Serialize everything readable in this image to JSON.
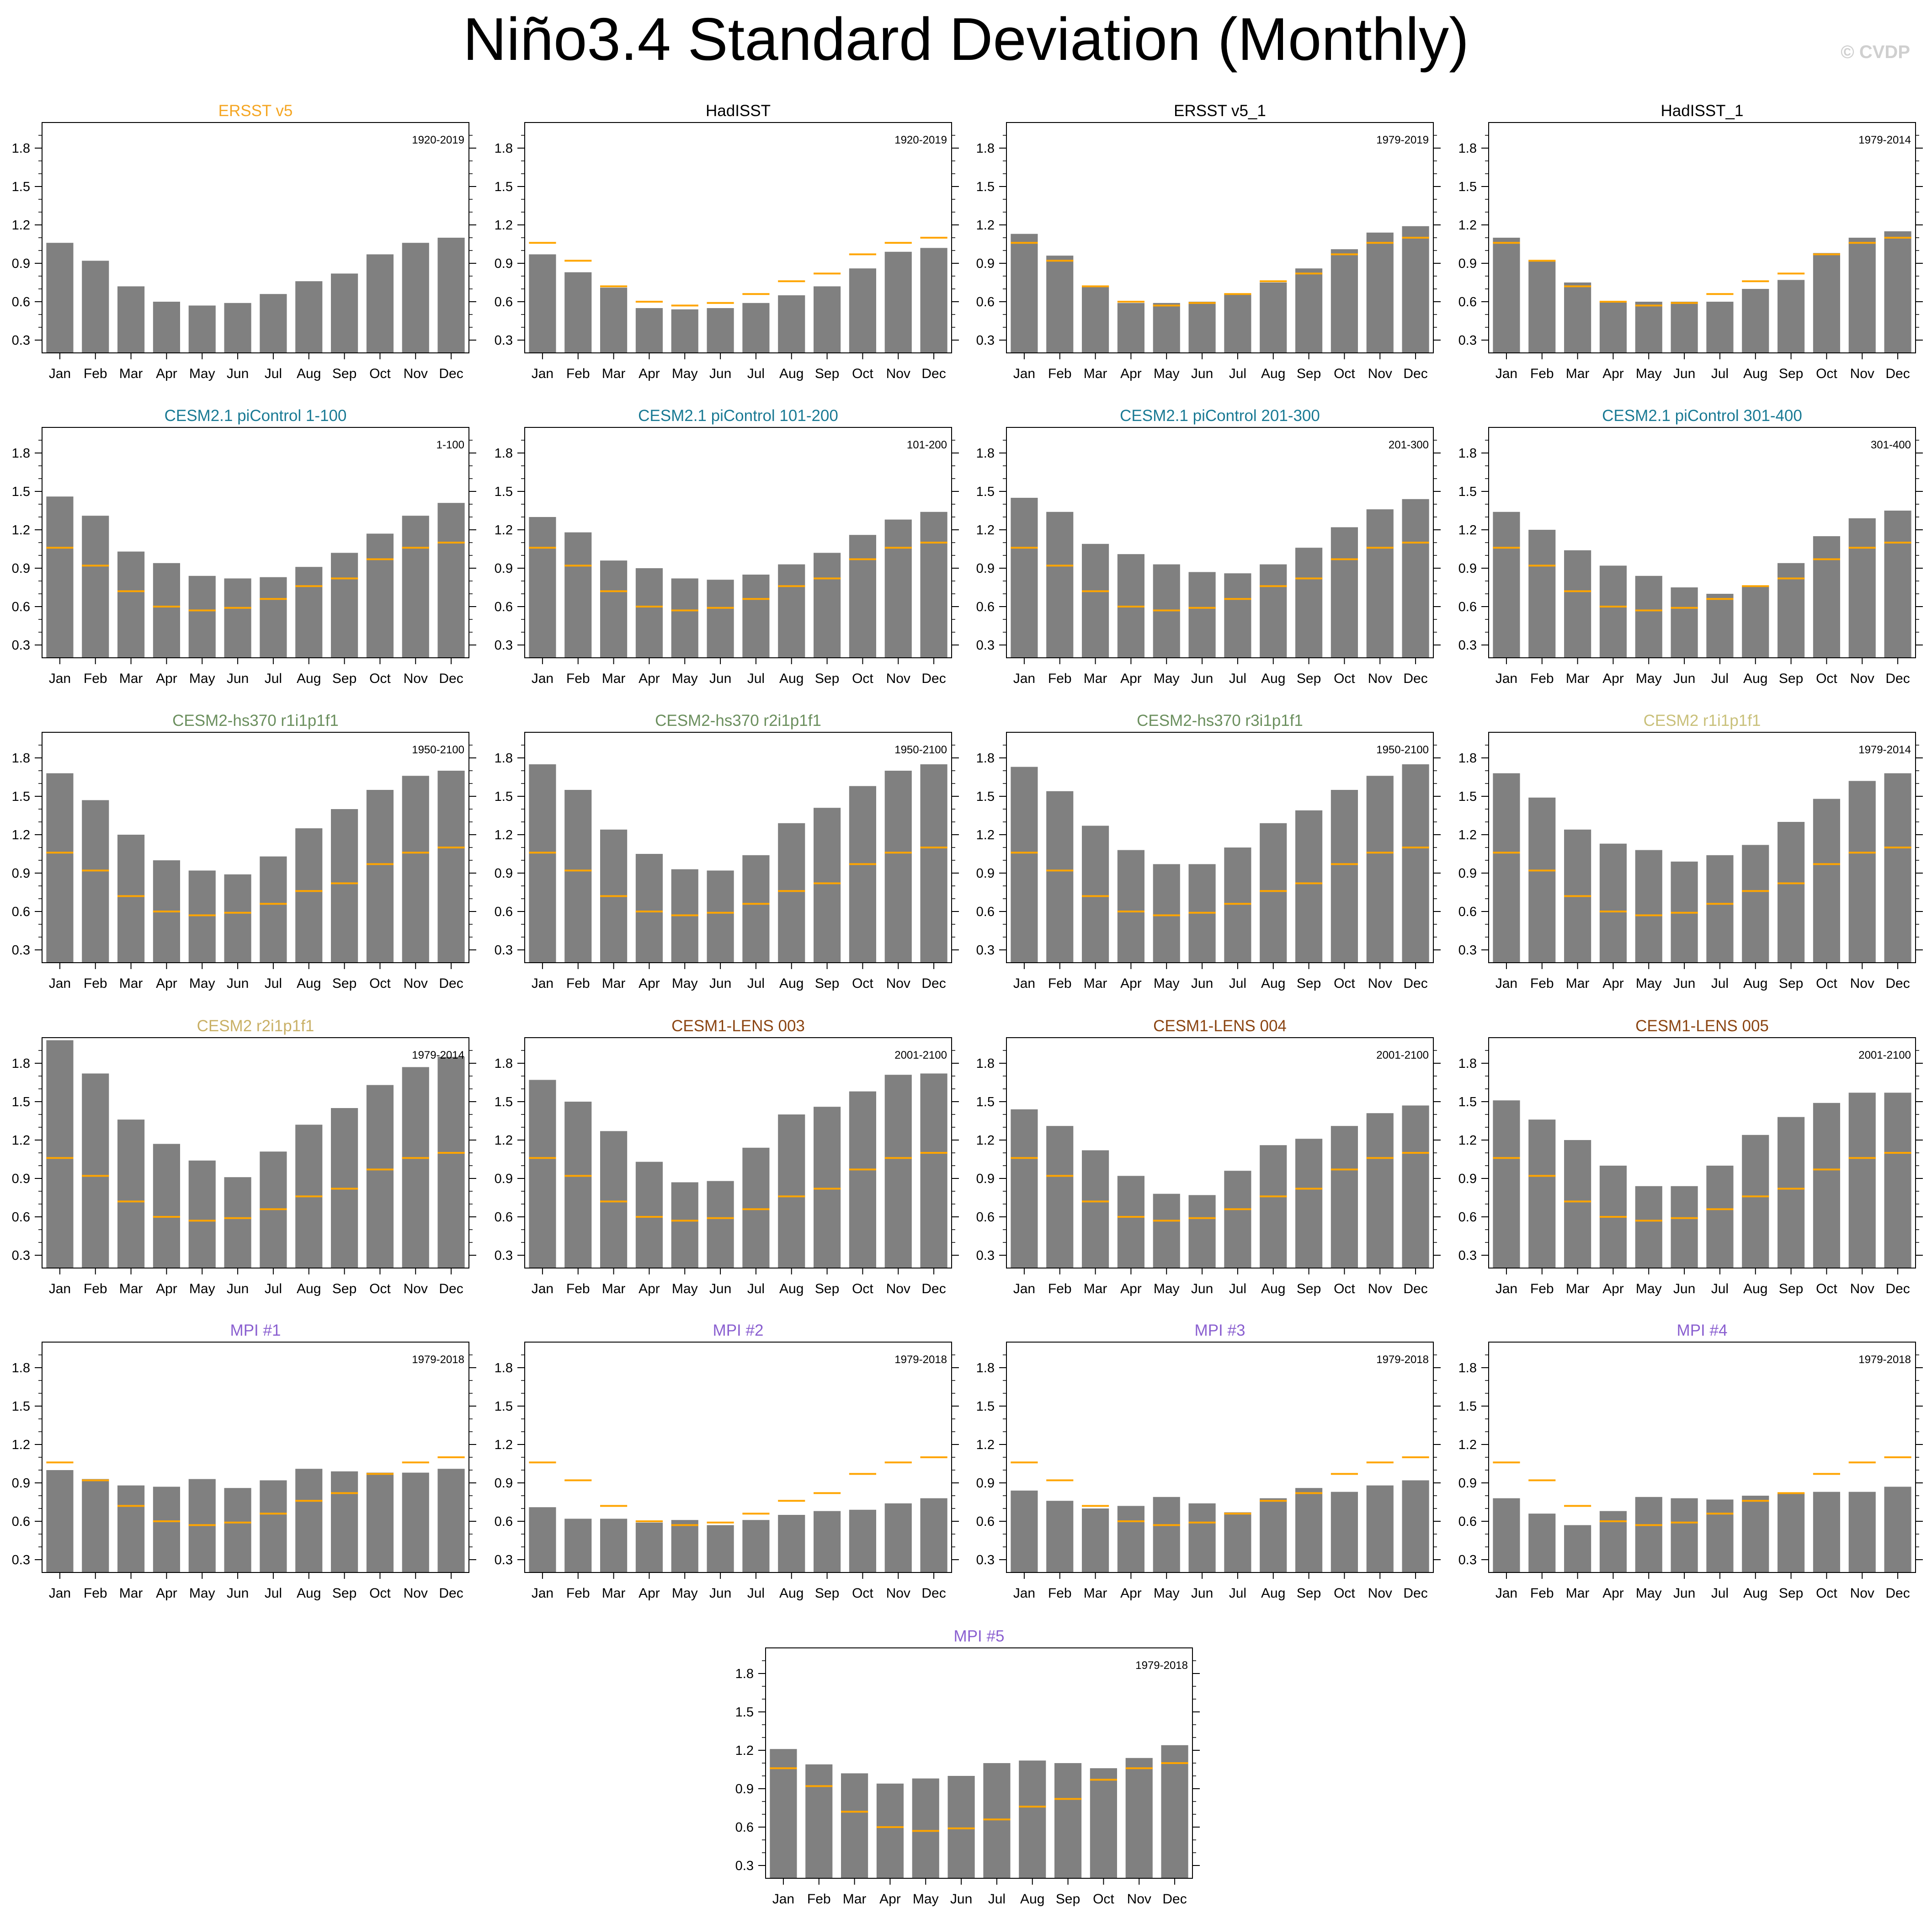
{
  "page": {
    "title": "Niño3.4 Standard Deviation (Monthly)",
    "watermark": "© CVDP",
    "colors": {
      "bar": "#808080",
      "reference_line": "#ffa500",
      "axis": "#000000"
    }
  },
  "chart_data": [
    {
      "type": "bar",
      "title": "ERSST v5",
      "title_color": "#f5a623",
      "period": "1920-2019",
      "categories": [
        "Jan",
        "Feb",
        "Mar",
        "Apr",
        "May",
        "Jun",
        "Jul",
        "Aug",
        "Sep",
        "Oct",
        "Nov",
        "Dec"
      ],
      "values": [
        1.06,
        0.92,
        0.72,
        0.6,
        0.57,
        0.59,
        0.66,
        0.76,
        0.82,
        0.97,
        1.06,
        1.1
      ],
      "reference": [
        1.06,
        0.92,
        0.72,
        0.6,
        0.57,
        0.59,
        0.66,
        0.76,
        0.82,
        0.97,
        1.06,
        1.1
      ],
      "show_reference": false,
      "ylim": [
        0.2,
        2.0
      ],
      "yticks": [
        0.3,
        0.6,
        0.9,
        1.2,
        1.5,
        1.8
      ]
    },
    {
      "type": "bar",
      "title": "HadISST",
      "title_color": "#000000",
      "period": "1920-2019",
      "categories": [
        "Jan",
        "Feb",
        "Mar",
        "Apr",
        "May",
        "Jun",
        "Jul",
        "Aug",
        "Sep",
        "Oct",
        "Nov",
        "Dec"
      ],
      "values": [
        0.97,
        0.83,
        0.71,
        0.55,
        0.54,
        0.55,
        0.59,
        0.65,
        0.72,
        0.86,
        0.99,
        1.02
      ],
      "reference": [
        1.06,
        0.92,
        0.72,
        0.6,
        0.57,
        0.59,
        0.66,
        0.76,
        0.82,
        0.97,
        1.06,
        1.1
      ],
      "show_reference": true,
      "ylim": [
        0.2,
        2.0
      ],
      "yticks": [
        0.3,
        0.6,
        0.9,
        1.2,
        1.5,
        1.8
      ]
    },
    {
      "type": "bar",
      "title": "ERSST v5_1",
      "title_color": "#000000",
      "period": "1979-2019",
      "categories": [
        "Jan",
        "Feb",
        "Mar",
        "Apr",
        "May",
        "Jun",
        "Jul",
        "Aug",
        "Sep",
        "Oct",
        "Nov",
        "Dec"
      ],
      "values": [
        1.13,
        0.96,
        0.72,
        0.59,
        0.59,
        0.6,
        0.66,
        0.75,
        0.86,
        1.01,
        1.14,
        1.19
      ],
      "reference": [
        1.06,
        0.92,
        0.72,
        0.6,
        0.57,
        0.59,
        0.66,
        0.76,
        0.82,
        0.97,
        1.06,
        1.1
      ],
      "show_reference": true,
      "ylim": [
        0.2,
        2.0
      ],
      "yticks": [
        0.3,
        0.6,
        0.9,
        1.2,
        1.5,
        1.8
      ]
    },
    {
      "type": "bar",
      "title": "HadISST_1",
      "title_color": "#000000",
      "period": "1979-2014",
      "categories": [
        "Jan",
        "Feb",
        "Mar",
        "Apr",
        "May",
        "Jun",
        "Jul",
        "Aug",
        "Sep",
        "Oct",
        "Nov",
        "Dec"
      ],
      "values": [
        1.1,
        0.92,
        0.75,
        0.6,
        0.6,
        0.6,
        0.6,
        0.7,
        0.77,
        0.98,
        1.1,
        1.15
      ],
      "reference": [
        1.06,
        0.92,
        0.72,
        0.6,
        0.57,
        0.59,
        0.66,
        0.76,
        0.82,
        0.97,
        1.06,
        1.1
      ],
      "show_reference": true,
      "ylim": [
        0.2,
        2.0
      ],
      "yticks": [
        0.3,
        0.6,
        0.9,
        1.2,
        1.5,
        1.8
      ]
    },
    {
      "type": "bar",
      "title": "CESM2.1 piControl 1-100",
      "title_color": "#1a7a94",
      "period": "1-100",
      "categories": [
        "Jan",
        "Feb",
        "Mar",
        "Apr",
        "May",
        "Jun",
        "Jul",
        "Aug",
        "Sep",
        "Oct",
        "Nov",
        "Dec"
      ],
      "values": [
        1.46,
        1.31,
        1.03,
        0.94,
        0.84,
        0.82,
        0.83,
        0.91,
        1.02,
        1.17,
        1.31,
        1.41
      ],
      "reference": [
        1.06,
        0.92,
        0.72,
        0.6,
        0.57,
        0.59,
        0.66,
        0.76,
        0.82,
        0.97,
        1.06,
        1.1
      ],
      "show_reference": true,
      "ylim": [
        0.2,
        2.0
      ],
      "yticks": [
        0.3,
        0.6,
        0.9,
        1.2,
        1.5,
        1.8
      ]
    },
    {
      "type": "bar",
      "title": "CESM2.1 piControl 101-200",
      "title_color": "#1a7a94",
      "period": "101-200",
      "categories": [
        "Jan",
        "Feb",
        "Mar",
        "Apr",
        "May",
        "Jun",
        "Jul",
        "Aug",
        "Sep",
        "Oct",
        "Nov",
        "Dec"
      ],
      "values": [
        1.3,
        1.18,
        0.96,
        0.9,
        0.82,
        0.81,
        0.85,
        0.93,
        1.02,
        1.16,
        1.28,
        1.34
      ],
      "reference": [
        1.06,
        0.92,
        0.72,
        0.6,
        0.57,
        0.59,
        0.66,
        0.76,
        0.82,
        0.97,
        1.06,
        1.1
      ],
      "show_reference": true,
      "ylim": [
        0.2,
        2.0
      ],
      "yticks": [
        0.3,
        0.6,
        0.9,
        1.2,
        1.5,
        1.8
      ]
    },
    {
      "type": "bar",
      "title": "CESM2.1 piControl 201-300",
      "title_color": "#1a7a94",
      "period": "201-300",
      "categories": [
        "Jan",
        "Feb",
        "Mar",
        "Apr",
        "May",
        "Jun",
        "Jul",
        "Aug",
        "Sep",
        "Oct",
        "Nov",
        "Dec"
      ],
      "values": [
        1.45,
        1.34,
        1.09,
        1.01,
        0.93,
        0.87,
        0.86,
        0.93,
        1.06,
        1.22,
        1.36,
        1.44
      ],
      "reference": [
        1.06,
        0.92,
        0.72,
        0.6,
        0.57,
        0.59,
        0.66,
        0.76,
        0.82,
        0.97,
        1.06,
        1.1
      ],
      "show_reference": true,
      "ylim": [
        0.2,
        2.0
      ],
      "yticks": [
        0.3,
        0.6,
        0.9,
        1.2,
        1.5,
        1.8
      ]
    },
    {
      "type": "bar",
      "title": "CESM2.1 piControl 301-400",
      "title_color": "#1a7a94",
      "period": "301-400",
      "categories": [
        "Jan",
        "Feb",
        "Mar",
        "Apr",
        "May",
        "Jun",
        "Jul",
        "Aug",
        "Sep",
        "Oct",
        "Nov",
        "Dec"
      ],
      "values": [
        1.34,
        1.2,
        1.04,
        0.92,
        0.84,
        0.75,
        0.7,
        0.76,
        0.94,
        1.15,
        1.29,
        1.35
      ],
      "reference": [
        1.06,
        0.92,
        0.72,
        0.6,
        0.57,
        0.59,
        0.66,
        0.76,
        0.82,
        0.97,
        1.06,
        1.1
      ],
      "show_reference": true,
      "ylim": [
        0.2,
        2.0
      ],
      "yticks": [
        0.3,
        0.6,
        0.9,
        1.2,
        1.5,
        1.8
      ]
    },
    {
      "type": "bar",
      "title": "CESM2-hs370 r1i1p1f1",
      "title_color": "#6b8f5e",
      "period": "1950-2100",
      "categories": [
        "Jan",
        "Feb",
        "Mar",
        "Apr",
        "May",
        "Jun",
        "Jul",
        "Aug",
        "Sep",
        "Oct",
        "Nov",
        "Dec"
      ],
      "values": [
        1.68,
        1.47,
        1.2,
        1.0,
        0.92,
        0.89,
        1.03,
        1.25,
        1.4,
        1.55,
        1.66,
        1.7
      ],
      "reference": [
        1.06,
        0.92,
        0.72,
        0.6,
        0.57,
        0.59,
        0.66,
        0.76,
        0.82,
        0.97,
        1.06,
        1.1
      ],
      "show_reference": true,
      "ylim": [
        0.2,
        2.0
      ],
      "yticks": [
        0.3,
        0.6,
        0.9,
        1.2,
        1.5,
        1.8
      ]
    },
    {
      "type": "bar",
      "title": "CESM2-hs370 r2i1p1f1",
      "title_color": "#6b8f5e",
      "period": "1950-2100",
      "categories": [
        "Jan",
        "Feb",
        "Mar",
        "Apr",
        "May",
        "Jun",
        "Jul",
        "Aug",
        "Sep",
        "Oct",
        "Nov",
        "Dec"
      ],
      "values": [
        1.75,
        1.55,
        1.24,
        1.05,
        0.93,
        0.92,
        1.04,
        1.29,
        1.41,
        1.58,
        1.7,
        1.75
      ],
      "reference": [
        1.06,
        0.92,
        0.72,
        0.6,
        0.57,
        0.59,
        0.66,
        0.76,
        0.82,
        0.97,
        1.06,
        1.1
      ],
      "show_reference": true,
      "ylim": [
        0.2,
        2.0
      ],
      "yticks": [
        0.3,
        0.6,
        0.9,
        1.2,
        1.5,
        1.8
      ]
    },
    {
      "type": "bar",
      "title": "CESM2-hs370 r3i1p1f1",
      "title_color": "#6b8f5e",
      "period": "1950-2100",
      "categories": [
        "Jan",
        "Feb",
        "Mar",
        "Apr",
        "May",
        "Jun",
        "Jul",
        "Aug",
        "Sep",
        "Oct",
        "Nov",
        "Dec"
      ],
      "values": [
        1.73,
        1.54,
        1.27,
        1.08,
        0.97,
        0.97,
        1.1,
        1.29,
        1.39,
        1.55,
        1.66,
        1.75
      ],
      "reference": [
        1.06,
        0.92,
        0.72,
        0.6,
        0.57,
        0.59,
        0.66,
        0.76,
        0.82,
        0.97,
        1.06,
        1.1
      ],
      "show_reference": true,
      "ylim": [
        0.2,
        2.0
      ],
      "yticks": [
        0.3,
        0.6,
        0.9,
        1.2,
        1.5,
        1.8
      ]
    },
    {
      "type": "bar",
      "title": "CESM2 r1i1p1f1",
      "title_color": "#c9c07a",
      "period": "1979-2014",
      "categories": [
        "Jan",
        "Feb",
        "Mar",
        "Apr",
        "May",
        "Jun",
        "Jul",
        "Aug",
        "Sep",
        "Oct",
        "Nov",
        "Dec"
      ],
      "values": [
        1.68,
        1.49,
        1.24,
        1.13,
        1.08,
        0.99,
        1.04,
        1.12,
        1.3,
        1.48,
        1.62,
        1.68
      ],
      "reference": [
        1.06,
        0.92,
        0.72,
        0.6,
        0.57,
        0.59,
        0.66,
        0.76,
        0.82,
        0.97,
        1.06,
        1.1
      ],
      "show_reference": true,
      "ylim": [
        0.2,
        2.0
      ],
      "yticks": [
        0.3,
        0.6,
        0.9,
        1.2,
        1.5,
        1.8
      ]
    },
    {
      "type": "bar",
      "title": "CESM2 r2i1p1f1",
      "title_color": "#c9b066",
      "period": "1979-2014",
      "categories": [
        "Jan",
        "Feb",
        "Mar",
        "Apr",
        "May",
        "Jun",
        "Jul",
        "Aug",
        "Sep",
        "Oct",
        "Nov",
        "Dec"
      ],
      "values": [
        1.98,
        1.72,
        1.36,
        1.17,
        1.04,
        0.91,
        1.11,
        1.32,
        1.45,
        1.63,
        1.77,
        1.85
      ],
      "reference": [
        1.06,
        0.92,
        0.72,
        0.6,
        0.57,
        0.59,
        0.66,
        0.76,
        0.82,
        0.97,
        1.06,
        1.1
      ],
      "show_reference": true,
      "ylim": [
        0.2,
        2.0
      ],
      "yticks": [
        0.3,
        0.6,
        0.9,
        1.2,
        1.5,
        1.8
      ]
    },
    {
      "type": "bar",
      "title": "CESM1-LENS 003",
      "title_color": "#8b4513",
      "period": "2001-2100",
      "categories": [
        "Jan",
        "Feb",
        "Mar",
        "Apr",
        "May",
        "Jun",
        "Jul",
        "Aug",
        "Sep",
        "Oct",
        "Nov",
        "Dec"
      ],
      "values": [
        1.67,
        1.5,
        1.27,
        1.03,
        0.87,
        0.88,
        1.14,
        1.4,
        1.46,
        1.58,
        1.71,
        1.72
      ],
      "reference": [
        1.06,
        0.92,
        0.72,
        0.6,
        0.57,
        0.59,
        0.66,
        0.76,
        0.82,
        0.97,
        1.06,
        1.1
      ],
      "show_reference": true,
      "ylim": [
        0.2,
        2.0
      ],
      "yticks": [
        0.3,
        0.6,
        0.9,
        1.2,
        1.5,
        1.8
      ]
    },
    {
      "type": "bar",
      "title": "CESM1-LENS 004",
      "title_color": "#8b4513",
      "period": "2001-2100",
      "categories": [
        "Jan",
        "Feb",
        "Mar",
        "Apr",
        "May",
        "Jun",
        "Jul",
        "Aug",
        "Sep",
        "Oct",
        "Nov",
        "Dec"
      ],
      "values": [
        1.44,
        1.31,
        1.12,
        0.92,
        0.78,
        0.77,
        0.96,
        1.16,
        1.21,
        1.31,
        1.41,
        1.47
      ],
      "reference": [
        1.06,
        0.92,
        0.72,
        0.6,
        0.57,
        0.59,
        0.66,
        0.76,
        0.82,
        0.97,
        1.06,
        1.1
      ],
      "show_reference": true,
      "ylim": [
        0.2,
        2.0
      ],
      "yticks": [
        0.3,
        0.6,
        0.9,
        1.2,
        1.5,
        1.8
      ]
    },
    {
      "type": "bar",
      "title": "CESM1-LENS 005",
      "title_color": "#8b4513",
      "period": "2001-2100",
      "categories": [
        "Jan",
        "Feb",
        "Mar",
        "Apr",
        "May",
        "Jun",
        "Jul",
        "Aug",
        "Sep",
        "Oct",
        "Nov",
        "Dec"
      ],
      "values": [
        1.51,
        1.36,
        1.2,
        1.0,
        0.84,
        0.84,
        1.0,
        1.24,
        1.38,
        1.49,
        1.57,
        1.57
      ],
      "reference": [
        1.06,
        0.92,
        0.72,
        0.6,
        0.57,
        0.59,
        0.66,
        0.76,
        0.82,
        0.97,
        1.06,
        1.1
      ],
      "show_reference": true,
      "ylim": [
        0.2,
        2.0
      ],
      "yticks": [
        0.3,
        0.6,
        0.9,
        1.2,
        1.5,
        1.8
      ]
    },
    {
      "type": "bar",
      "title": "MPI #1",
      "title_color": "#8a5fd0",
      "period": "1979-2018",
      "categories": [
        "Jan",
        "Feb",
        "Mar",
        "Apr",
        "May",
        "Jun",
        "Jul",
        "Aug",
        "Sep",
        "Oct",
        "Nov",
        "Dec"
      ],
      "values": [
        1.0,
        0.93,
        0.88,
        0.87,
        0.93,
        0.86,
        0.92,
        1.01,
        0.99,
        0.98,
        0.98,
        1.01
      ],
      "reference": [
        1.06,
        0.92,
        0.72,
        0.6,
        0.57,
        0.59,
        0.66,
        0.76,
        0.82,
        0.97,
        1.06,
        1.1
      ],
      "show_reference": true,
      "ylim": [
        0.2,
        2.0
      ],
      "yticks": [
        0.3,
        0.6,
        0.9,
        1.2,
        1.5,
        1.8
      ]
    },
    {
      "type": "bar",
      "title": "MPI #2",
      "title_color": "#8a5fd0",
      "period": "1979-2018",
      "categories": [
        "Jan",
        "Feb",
        "Mar",
        "Apr",
        "May",
        "Jun",
        "Jul",
        "Aug",
        "Sep",
        "Oct",
        "Nov",
        "Dec"
      ],
      "values": [
        0.71,
        0.62,
        0.62,
        0.59,
        0.61,
        0.57,
        0.61,
        0.65,
        0.68,
        0.69,
        0.74,
        0.78
      ],
      "reference": [
        1.06,
        0.92,
        0.72,
        0.6,
        0.57,
        0.59,
        0.66,
        0.76,
        0.82,
        0.97,
        1.06,
        1.1
      ],
      "show_reference": true,
      "ylim": [
        0.2,
        2.0
      ],
      "yticks": [
        0.3,
        0.6,
        0.9,
        1.2,
        1.5,
        1.8
      ]
    },
    {
      "type": "bar",
      "title": "MPI #3",
      "title_color": "#8a5fd0",
      "period": "1979-2018",
      "categories": [
        "Jan",
        "Feb",
        "Mar",
        "Apr",
        "May",
        "Jun",
        "Jul",
        "Aug",
        "Sep",
        "Oct",
        "Nov",
        "Dec"
      ],
      "values": [
        0.84,
        0.76,
        0.7,
        0.72,
        0.79,
        0.74,
        0.67,
        0.78,
        0.86,
        0.83,
        0.88,
        0.92
      ],
      "reference": [
        1.06,
        0.92,
        0.72,
        0.6,
        0.57,
        0.59,
        0.66,
        0.76,
        0.82,
        0.97,
        1.06,
        1.1
      ],
      "show_reference": true,
      "ylim": [
        0.2,
        2.0
      ],
      "yticks": [
        0.3,
        0.6,
        0.9,
        1.2,
        1.5,
        1.8
      ]
    },
    {
      "type": "bar",
      "title": "MPI #4",
      "title_color": "#8a5fd0",
      "period": "1979-2018",
      "categories": [
        "Jan",
        "Feb",
        "Mar",
        "Apr",
        "May",
        "Jun",
        "Jul",
        "Aug",
        "Sep",
        "Oct",
        "Nov",
        "Dec"
      ],
      "values": [
        0.78,
        0.66,
        0.57,
        0.68,
        0.79,
        0.78,
        0.77,
        0.8,
        0.82,
        0.83,
        0.83,
        0.87
      ],
      "reference": [
        1.06,
        0.92,
        0.72,
        0.6,
        0.57,
        0.59,
        0.66,
        0.76,
        0.82,
        0.97,
        1.06,
        1.1
      ],
      "show_reference": true,
      "ylim": [
        0.2,
        2.0
      ],
      "yticks": [
        0.3,
        0.6,
        0.9,
        1.2,
        1.5,
        1.8
      ]
    },
    {
      "type": "bar",
      "title": "MPI #5",
      "title_color": "#8a5fd0",
      "period": "1979-2018",
      "categories": [
        "Jan",
        "Feb",
        "Mar",
        "Apr",
        "May",
        "Jun",
        "Jul",
        "Aug",
        "Sep",
        "Oct",
        "Nov",
        "Dec"
      ],
      "values": [
        1.21,
        1.09,
        1.02,
        0.94,
        0.98,
        1.0,
        1.1,
        1.12,
        1.1,
        1.06,
        1.14,
        1.24
      ],
      "reference": [
        1.06,
        0.92,
        0.72,
        0.6,
        0.57,
        0.59,
        0.66,
        0.76,
        0.82,
        0.97,
        1.06,
        1.1
      ],
      "show_reference": true,
      "ylim": [
        0.2,
        2.0
      ],
      "yticks": [
        0.3,
        0.6,
        0.9,
        1.2,
        1.5,
        1.8
      ]
    }
  ]
}
